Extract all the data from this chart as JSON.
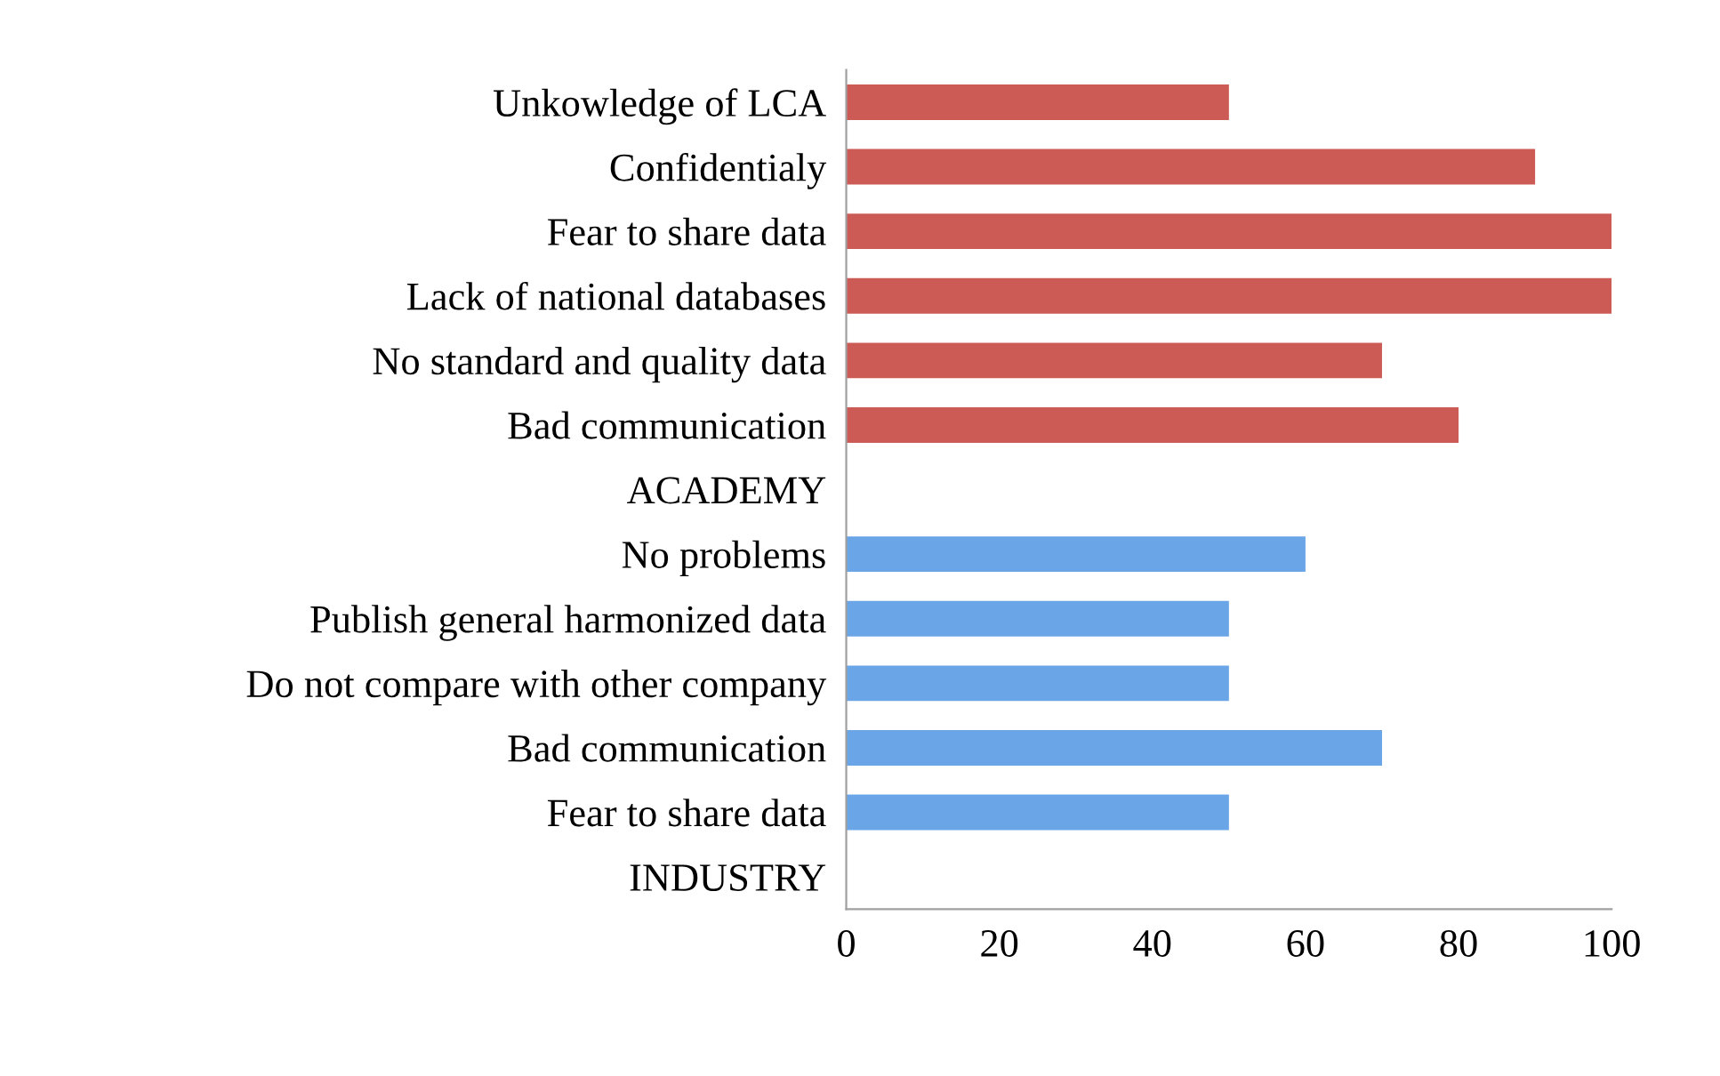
{
  "chart_data": {
    "type": "bar",
    "orientation": "horizontal",
    "categories": [
      "Unkowledge of LCA",
      "Confidentialy",
      "Fear to share data",
      "Lack of national databases",
      "No standard and quality data",
      "Bad communication",
      "ACADEMY",
      "No problems",
      "Publish general harmonized data",
      "Do not compare with other company",
      "Bad communication",
      "Fear to share data",
      "INDUSTRY"
    ],
    "values": [
      50,
      90,
      100,
      100,
      70,
      80,
      null,
      60,
      50,
      50,
      70,
      50,
      null
    ],
    "colors": [
      "#cd5b55",
      "#cd5b55",
      "#cd5b55",
      "#cd5b55",
      "#cd5b55",
      "#cd5b55",
      null,
      "#6aa5e8",
      "#6aa5e8",
      "#6aa5e8",
      "#6aa5e8",
      "#6aa5e8",
      null
    ],
    "xlim": [
      0,
      100
    ],
    "xticks": [
      0,
      20,
      40,
      60,
      80,
      100
    ],
    "grid": false,
    "legend": false
  }
}
